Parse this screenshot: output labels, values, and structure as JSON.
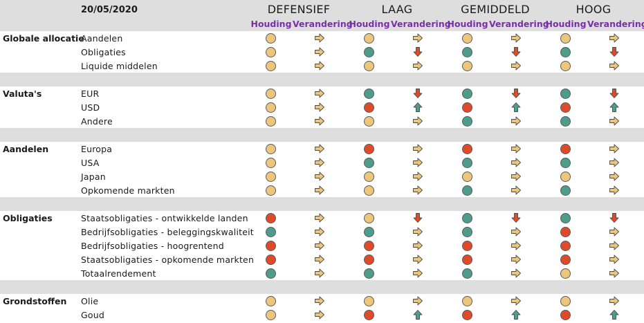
{
  "header": {
    "date": "20/05/2020",
    "profiles": [
      "DEFENSIEF",
      "LAAG",
      "GEMIDDELD",
      "HOOG"
    ],
    "col_houding": "Houding",
    "col_verandering": "Verandering"
  },
  "colors": {
    "neutral": "#ecc67a",
    "positive": "#4e9c8c",
    "negative": "#dd4b2b",
    "arrow_side": "#ecc67a",
    "arrow_up": "#4e9c8c",
    "arrow_down": "#dd4b2b",
    "subheader_purple": "#7a2fa6"
  },
  "legend": {
    "o": "neutral-dot",
    "g": "positive-dot",
    "r": "negative-dot",
    "s": "arrow-right-icon",
    "u": "arrow-up-icon",
    "d": "arrow-down-icon"
  },
  "sections": [
    {
      "name": "Globale allocatie",
      "rows": [
        {
          "label": "Aandelen",
          "cells": [
            "o",
            "s",
            "o",
            "s",
            "o",
            "s",
            "o",
            "s"
          ]
        },
        {
          "label": "Obligaties",
          "cells": [
            "o",
            "s",
            "g",
            "d",
            "g",
            "d",
            "g",
            "d"
          ]
        },
        {
          "label": "Liquide middelen",
          "cells": [
            "o",
            "s",
            "o",
            "s",
            "o",
            "s",
            "o",
            "s"
          ]
        }
      ]
    },
    {
      "name": "Valuta's",
      "rows": [
        {
          "label": "EUR",
          "cells": [
            "o",
            "s",
            "g",
            "d",
            "g",
            "d",
            "g",
            "d"
          ]
        },
        {
          "label": "USD",
          "cells": [
            "o",
            "s",
            "r",
            "u",
            "r",
            "u",
            "r",
            "u"
          ]
        },
        {
          "label": "Andere",
          "cells": [
            "o",
            "s",
            "o",
            "s",
            "g",
            "s",
            "g",
            "s"
          ]
        }
      ]
    },
    {
      "name": "Aandelen",
      "rows": [
        {
          "label": "Europa",
          "cells": [
            "o",
            "s",
            "r",
            "s",
            "r",
            "s",
            "r",
            "s"
          ]
        },
        {
          "label": "USA",
          "cells": [
            "o",
            "s",
            "g",
            "s",
            "g",
            "s",
            "g",
            "s"
          ]
        },
        {
          "label": "Japan",
          "cells": [
            "o",
            "s",
            "o",
            "s",
            "o",
            "s",
            "o",
            "s"
          ]
        },
        {
          "label": "Opkomende markten",
          "cells": [
            "o",
            "s",
            "o",
            "s",
            "g",
            "s",
            "g",
            "s"
          ]
        }
      ]
    },
    {
      "name": "Obligaties",
      "rows": [
        {
          "label": "Staatsobligaties - ontwikkelde landen",
          "cells": [
            "r",
            "s",
            "o",
            "d",
            "g",
            "d",
            "g",
            "d"
          ]
        },
        {
          "label": "Bedrijfsobligaties - beleggingskwaliteit",
          "cells": [
            "g",
            "s",
            "g",
            "s",
            "g",
            "s",
            "r",
            "s"
          ]
        },
        {
          "label": "Bedrijfsobligaties - hoogrentend",
          "cells": [
            "r",
            "s",
            "r",
            "s",
            "r",
            "s",
            "r",
            "s"
          ]
        },
        {
          "label": "Staatsobligaties - opkomende markten",
          "cells": [
            "r",
            "s",
            "r",
            "s",
            "r",
            "s",
            "r",
            "s"
          ]
        },
        {
          "label": "Totaalrendement",
          "cells": [
            "g",
            "s",
            "g",
            "s",
            "g",
            "s",
            "o",
            "s"
          ]
        }
      ]
    },
    {
      "name": "Grondstoffen",
      "rows": [
        {
          "label": "Olie",
          "cells": [
            "o",
            "s",
            "o",
            "s",
            "o",
            "s",
            "o",
            "s"
          ]
        },
        {
          "label": "Goud",
          "cells": [
            "o",
            "s",
            "r",
            "u",
            "r",
            "u",
            "r",
            "u"
          ]
        }
      ]
    }
  ]
}
